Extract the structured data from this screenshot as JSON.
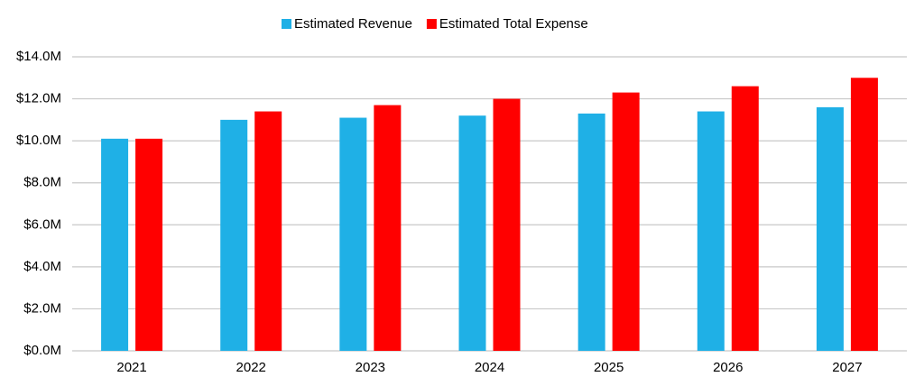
{
  "chart_data": {
    "type": "bar",
    "categories": [
      "2021",
      "2022",
      "2023",
      "2024",
      "2025",
      "2026",
      "2027"
    ],
    "series": [
      {
        "name": "Estimated Revenue",
        "color": "#1fb0e6",
        "values": [
          10100000,
          11000000,
          11100000,
          11200000,
          11300000,
          11400000,
          11600000
        ]
      },
      {
        "name": "Estimated Total Expense",
        "color": "#ff0000",
        "values": [
          10100000,
          11400000,
          11700000,
          12000000,
          12300000,
          12600000,
          13000000
        ]
      }
    ],
    "ylim": [
      0,
      14000000
    ],
    "yticks": [
      {
        "value": 0,
        "label": "$0.0M"
      },
      {
        "value": 2000000,
        "label": "$2.0M"
      },
      {
        "value": 4000000,
        "label": "$4.0M"
      },
      {
        "value": 6000000,
        "label": "$6.0M"
      },
      {
        "value": 8000000,
        "label": "$8.0M"
      },
      {
        "value": 10000000,
        "label": "$10.0M"
      },
      {
        "value": 12000000,
        "label": "$12.0M"
      },
      {
        "value": 14000000,
        "label": "$14.0M"
      }
    ],
    "grid": true,
    "legend": "top"
  }
}
